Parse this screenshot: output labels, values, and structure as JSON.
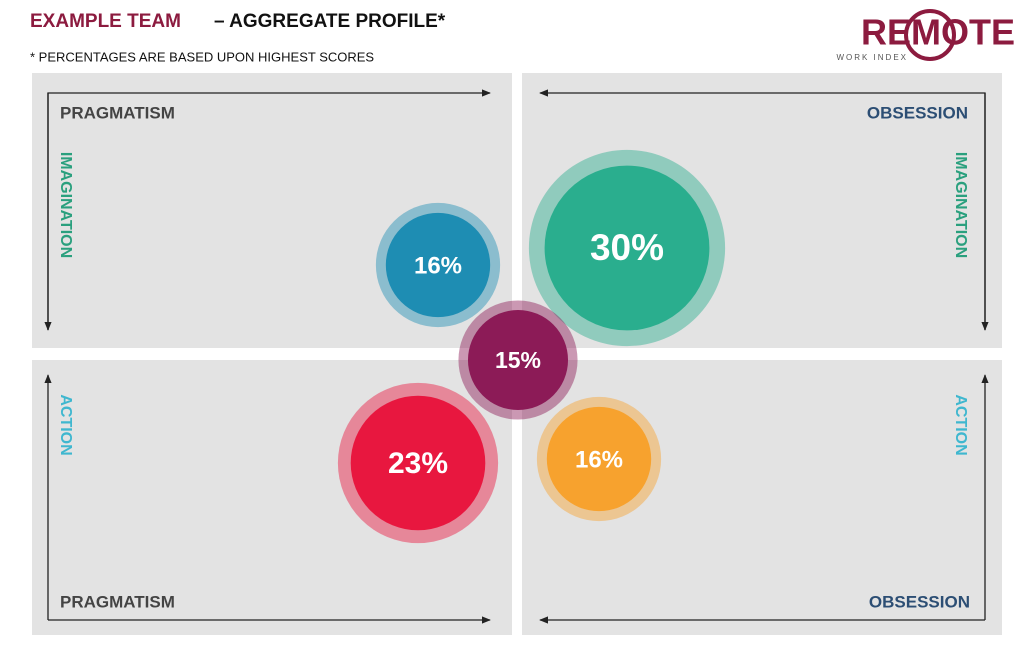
{
  "chart_data": {
    "type": "bubble",
    "title": "EXAMPLE TEAM",
    "title_rest": "– AGGREGATE PROFILE*",
    "subtitle": "* PERCENTAGES ARE BASED UPON HIGHEST SCORES",
    "logo": {
      "name": "REMOTE",
      "tagline": "WORK INDEX"
    },
    "quadrants": [
      {
        "x_label": "PRAGMATISM",
        "y_label": "IMAGINATION"
      },
      {
        "x_label": "OBSESSION",
        "y_label": "IMAGINATION"
      },
      {
        "x_label": "PRAGMATISM",
        "y_label": "ACTION"
      },
      {
        "x_label": "OBSESSION",
        "y_label": "ACTION"
      }
    ],
    "values": [
      16,
      30,
      15,
      23,
      16
    ],
    "value_labels": [
      "16%",
      "30%",
      "15%",
      "23%",
      "16%"
    ],
    "colors": [
      "#1e8db3",
      "#2aae8e",
      "#8c1b57",
      "#e8173f",
      "#f7a22e"
    ]
  }
}
